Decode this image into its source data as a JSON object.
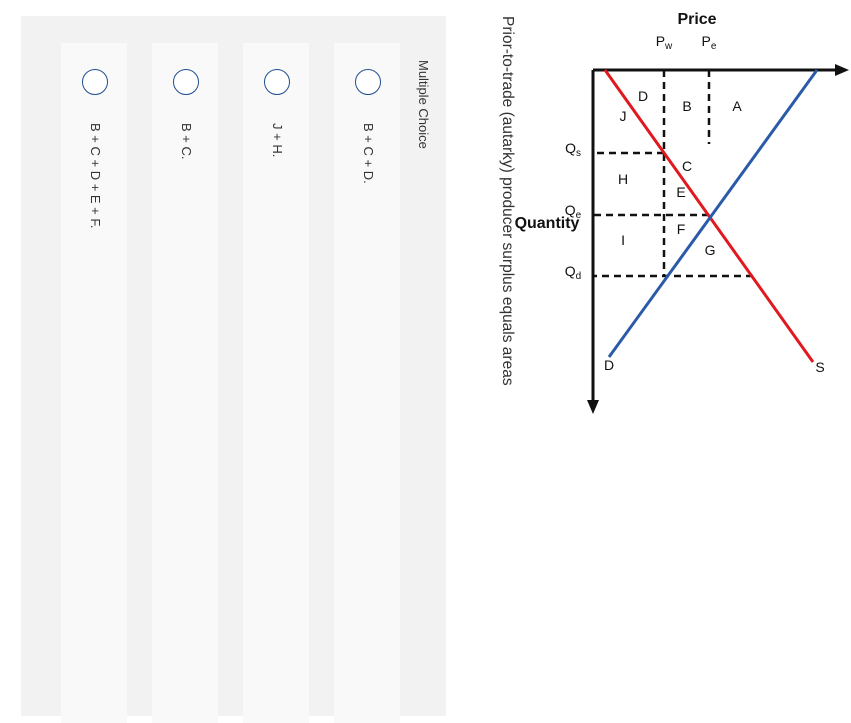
{
  "diagram": {
    "y_axis_label": "Price",
    "x_axis_label": "Quantity",
    "price_labels": {
      "pe": "P",
      "pe_sub": "e",
      "pw": "P",
      "pw_sub": "w"
    },
    "quantity_labels": {
      "qs": "Q",
      "qs_sub": "s",
      "qe": "Q",
      "qe_sub": "e",
      "qd": "Q",
      "qd_sub": "d"
    },
    "curve_labels": {
      "supply": "S",
      "demand": "D"
    },
    "area_labels": [
      "A",
      "B",
      "C",
      "D",
      "E",
      "F",
      "G",
      "H",
      "I",
      "J"
    ],
    "colors": {
      "supply": "#2b5aa8",
      "demand": "#e0191f",
      "axes": "#111111"
    }
  },
  "question": {
    "text": "Prior-to-trade (autarky) producer surplus equals areas"
  },
  "multiple_choice": {
    "header": "Multiple Choice",
    "options": [
      {
        "label": "B + C + D."
      },
      {
        "label": "J + H."
      },
      {
        "label": "B + C."
      },
      {
        "label": "B + C + D + E + F."
      }
    ]
  }
}
